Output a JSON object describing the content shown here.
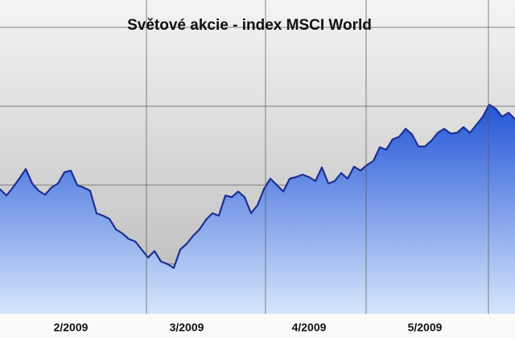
{
  "chart_data": {
    "type": "area",
    "title": "Světové akcie - index MSCI World",
    "categories": [
      null,
      null,
      null,
      null,
      null,
      null,
      null,
      null,
      null,
      null,
      null,
      "2/2009",
      null,
      null,
      null,
      null,
      null,
      null,
      null,
      null,
      null,
      null,
      null,
      null,
      null,
      null,
      null,
      null,
      null,
      "3/2009",
      null,
      null,
      null,
      null,
      null,
      null,
      null,
      null,
      null,
      null,
      null,
      null,
      null,
      null,
      null,
      null,
      null,
      null,
      "4/2009",
      null,
      null,
      null,
      null,
      null,
      null,
      null,
      null,
      null,
      null,
      null,
      null,
      null,
      null,
      null,
      null,
      null,
      "5/2009",
      null,
      null,
      null,
      null,
      null,
      null,
      null,
      null,
      null,
      null,
      null,
      null,
      null,
      null
    ],
    "values": [
      155,
      147,
      157,
      168,
      180,
      162,
      153,
      148,
      157,
      162,
      176,
      178,
      160,
      157,
      153,
      125,
      122,
      118,
      105,
      100,
      93,
      90,
      80,
      70,
      78,
      65,
      62,
      57,
      80,
      87,
      97,
      105,
      117,
      125,
      122,
      147,
      145,
      152,
      145,
      125,
      135,
      155,
      168,
      160,
      152,
      168,
      170,
      173,
      170,
      165,
      182,
      162,
      165,
      175,
      168,
      183,
      178,
      185,
      190,
      207,
      204,
      217,
      220,
      230,
      223,
      208,
      208,
      215,
      225,
      230,
      224,
      225,
      232,
      225,
      235,
      245,
      260,
      255,
      245,
      250,
      242
    ],
    "color": "#1c2f94",
    "ylim": [
      0,
      360
    ],
    "yticks": [
      62,
      160,
      258,
      356
    ],
    "grid": true
  }
}
